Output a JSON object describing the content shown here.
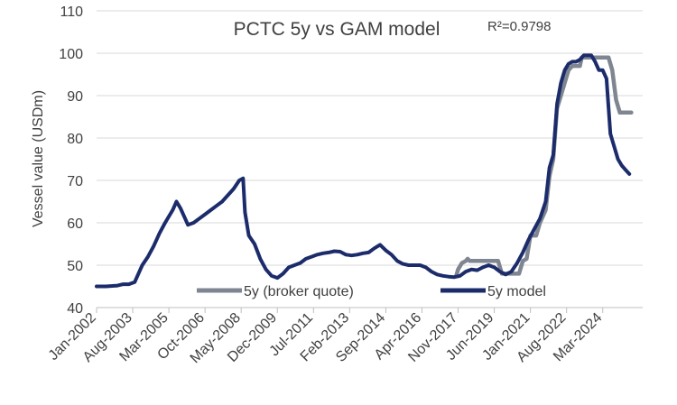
{
  "chart_data": {
    "type": "line",
    "title": "PCTC 5y vs GAM model",
    "annotation": "R²=0.9798",
    "xlabel": "",
    "ylabel": "Vessel value (USDm)",
    "ylim": [
      40,
      110
    ],
    "yticks": [
      40,
      50,
      60,
      70,
      80,
      90,
      100,
      110
    ],
    "xlim": [
      "2002-01",
      "2025-12"
    ],
    "xtick_labels": [
      "Jan-2002",
      "Aug-2003",
      "Mar-2005",
      "Oct-2006",
      "May-2008",
      "Dec-2009",
      "Jul-2011",
      "Feb-2013",
      "Sep-2014",
      "Apr-2016",
      "Nov-2017",
      "Jun-2019",
      "Jan-2021",
      "Aug-2022",
      "Mar-2024"
    ],
    "grid": "horizontal",
    "legend": "inside-bottom",
    "series": [
      {
        "name": "5y (broker quote)",
        "color": "#7f8691",
        "points": [
          [
            "2017-10",
            47.5
          ],
          [
            "2017-11",
            49.0
          ],
          [
            "2018-01",
            50.5
          ],
          [
            "2018-03",
            51.0
          ],
          [
            "2018-04",
            51.5
          ],
          [
            "2018-05",
            51.0
          ],
          [
            "2018-08",
            51.0
          ],
          [
            "2019-01",
            51.0
          ],
          [
            "2019-06",
            51.0
          ],
          [
            "2019-08",
            51.0
          ],
          [
            "2019-10",
            48.0
          ],
          [
            "2020-01",
            48.0
          ],
          [
            "2020-04",
            48.0
          ],
          [
            "2020-07",
            48.0
          ],
          [
            "2020-09",
            51.0
          ],
          [
            "2020-11",
            51.5
          ],
          [
            "2021-01",
            57.0
          ],
          [
            "2021-04",
            57.0
          ],
          [
            "2021-06",
            60.0
          ],
          [
            "2021-09",
            63.0
          ],
          [
            "2021-11",
            71.0
          ],
          [
            "2022-01",
            75.0
          ],
          [
            "2022-03",
            87.0
          ],
          [
            "2022-05",
            90.0
          ],
          [
            "2022-07",
            93.0
          ],
          [
            "2022-09",
            96.0
          ],
          [
            "2022-11",
            97.0
          ],
          [
            "2023-01",
            97.0
          ],
          [
            "2023-03",
            97.0
          ],
          [
            "2023-04",
            99.0
          ],
          [
            "2023-06",
            99.0
          ],
          [
            "2023-09",
            99.0
          ],
          [
            "2023-12",
            99.0
          ],
          [
            "2024-03",
            99.0
          ],
          [
            "2024-06",
            99.0
          ],
          [
            "2024-08",
            96.0
          ],
          [
            "2024-10",
            89.0
          ],
          [
            "2024-12",
            86.0
          ],
          [
            "2025-03",
            86.0
          ],
          [
            "2025-06",
            86.0
          ]
        ]
      },
      {
        "name": "5y model",
        "color": "#1c2c6b",
        "points": [
          [
            "2002-01",
            45.0
          ],
          [
            "2002-06",
            45.0
          ],
          [
            "2002-12",
            45.2
          ],
          [
            "2003-03",
            45.5
          ],
          [
            "2003-06",
            45.5
          ],
          [
            "2003-09",
            46.0
          ],
          [
            "2003-10",
            47.0
          ],
          [
            "2004-01",
            50.0
          ],
          [
            "2004-04",
            52.0
          ],
          [
            "2004-07",
            54.5
          ],
          [
            "2004-10",
            57.5
          ],
          [
            "2005-01",
            60.0
          ],
          [
            "2005-05",
            63.0
          ],
          [
            "2005-07",
            65.0
          ],
          [
            "2005-09",
            63.5
          ],
          [
            "2005-12",
            60.5
          ],
          [
            "2006-01",
            59.5
          ],
          [
            "2006-04",
            60.0
          ],
          [
            "2006-07",
            61.0
          ],
          [
            "2006-10",
            62.0
          ],
          [
            "2007-01",
            63.0
          ],
          [
            "2007-04",
            64.0
          ],
          [
            "2007-07",
            65.0
          ],
          [
            "2007-10",
            66.5
          ],
          [
            "2008-01",
            68.0
          ],
          [
            "2008-04",
            70.0
          ],
          [
            "2008-06",
            70.5
          ],
          [
            "2008-07",
            62.5
          ],
          [
            "2008-09",
            57.0
          ],
          [
            "2008-12",
            55.0
          ],
          [
            "2009-03",
            51.5
          ],
          [
            "2009-06",
            49.0
          ],
          [
            "2009-09",
            47.5
          ],
          [
            "2009-12",
            47.0
          ],
          [
            "2010-03",
            48.0
          ],
          [
            "2010-06",
            49.5
          ],
          [
            "2010-09",
            50.0
          ],
          [
            "2010-12",
            50.5
          ],
          [
            "2011-03",
            51.5
          ],
          [
            "2011-06",
            52.0
          ],
          [
            "2011-09",
            52.5
          ],
          [
            "2011-12",
            52.8
          ],
          [
            "2012-03",
            53.0
          ],
          [
            "2012-06",
            53.3
          ],
          [
            "2012-09",
            53.2
          ],
          [
            "2012-12",
            52.5
          ],
          [
            "2013-03",
            52.3
          ],
          [
            "2013-06",
            52.5
          ],
          [
            "2013-09",
            52.8
          ],
          [
            "2013-12",
            53.0
          ],
          [
            "2014-03",
            54.0
          ],
          [
            "2014-06",
            54.8
          ],
          [
            "2014-09",
            53.5
          ],
          [
            "2014-12",
            52.5
          ],
          [
            "2015-03",
            51.0
          ],
          [
            "2015-06",
            50.3
          ],
          [
            "2015-09",
            50.0
          ],
          [
            "2015-12",
            50.0
          ],
          [
            "2016-03",
            50.0
          ],
          [
            "2016-06",
            49.5
          ],
          [
            "2016-09",
            48.5
          ],
          [
            "2016-12",
            47.8
          ],
          [
            "2017-03",
            47.5
          ],
          [
            "2017-06",
            47.3
          ],
          [
            "2017-09",
            47.2
          ],
          [
            "2017-12",
            47.5
          ],
          [
            "2018-03",
            48.5
          ],
          [
            "2018-06",
            49.0
          ],
          [
            "2018-09",
            48.8
          ],
          [
            "2018-12",
            49.5
          ],
          [
            "2019-03",
            50.0
          ],
          [
            "2019-06",
            49.5
          ],
          [
            "2019-09",
            48.5
          ],
          [
            "2019-12",
            47.8
          ],
          [
            "2020-03",
            48.5
          ],
          [
            "2020-06",
            50.5
          ],
          [
            "2020-09",
            53.0
          ],
          [
            "2020-12",
            56.0
          ],
          [
            "2021-03",
            58.5
          ],
          [
            "2021-06",
            61.0
          ],
          [
            "2021-09",
            65.0
          ],
          [
            "2021-11",
            73.0
          ],
          [
            "2022-01",
            76.0
          ],
          [
            "2022-03",
            88.0
          ],
          [
            "2022-05",
            93.0
          ],
          [
            "2022-07",
            96.0
          ],
          [
            "2022-09",
            97.5
          ],
          [
            "2022-11",
            98.0
          ],
          [
            "2023-01",
            98.0
          ],
          [
            "2023-03",
            98.5
          ],
          [
            "2023-05",
            99.5
          ],
          [
            "2023-07",
            99.5
          ],
          [
            "2023-09",
            99.5
          ],
          [
            "2023-11",
            98.0
          ],
          [
            "2024-01",
            96.0
          ],
          [
            "2024-03",
            96.0
          ],
          [
            "2024-05",
            94.0
          ],
          [
            "2024-07",
            81.0
          ],
          [
            "2024-09",
            78.0
          ],
          [
            "2024-11",
            75.0
          ],
          [
            "2025-01",
            73.5
          ],
          [
            "2025-03",
            72.5
          ],
          [
            "2025-05",
            71.5
          ]
        ]
      }
    ]
  }
}
